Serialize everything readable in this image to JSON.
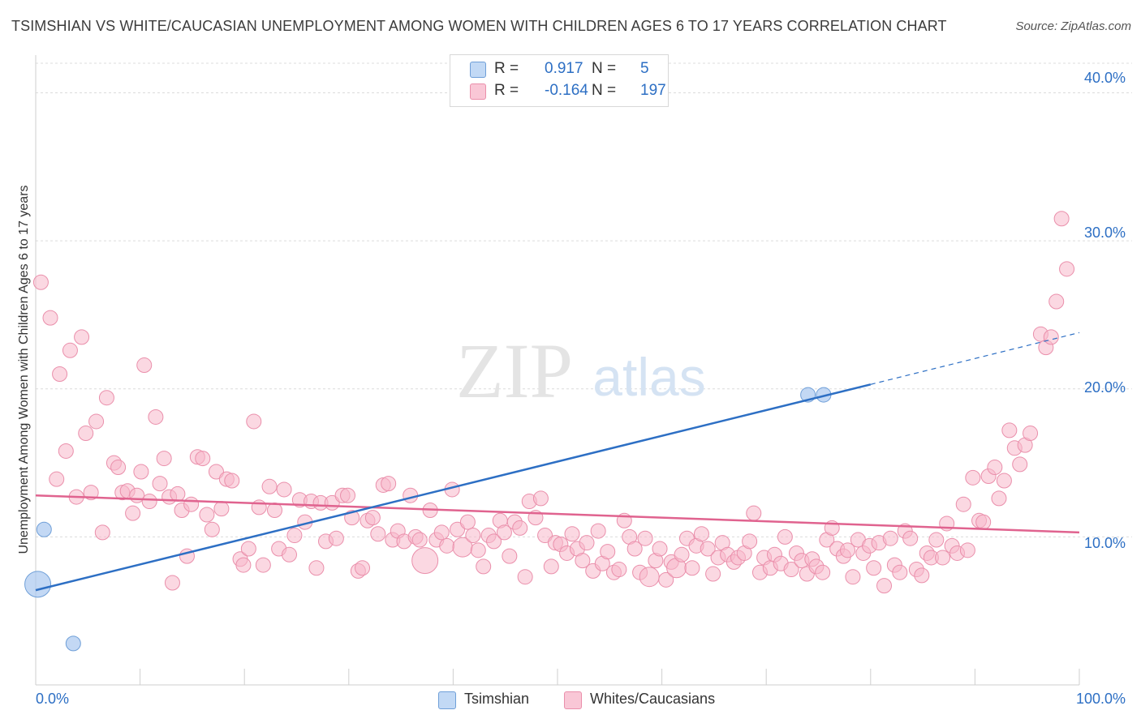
{
  "title": "TSIMSHIAN VS WHITE/CAUCASIAN UNEMPLOYMENT AMONG WOMEN WITH CHILDREN AGES 6 TO 17 YEARS CORRELATION CHART",
  "source": "Source: ZipAtlas.com",
  "watermark": {
    "zip": "ZIP",
    "atlas": "atlas"
  },
  "legend": {
    "rows": [
      {
        "r_label": "R =",
        "r_value": "0.917",
        "n_label": "N =",
        "n_value": "5"
      },
      {
        "r_label": "R =",
        "r_value": "-0.164",
        "n_label": "N =",
        "n_value": "197"
      }
    ]
  },
  "bottom_legend": {
    "series1": "Tsimshian",
    "series2": "Whites/Caucasians"
  },
  "colors": {
    "tsimshian_fill": "#aac8f0",
    "tsimshian_stroke": "#6f9fd8",
    "tsimshian_line": "#2d6fc4",
    "white_fill": "#f7b8cb",
    "white_stroke": "#ea8fab",
    "white_line": "#e0638f",
    "axis_label": "#2d6fc4",
    "grid": "#dcdcdc"
  },
  "chart_data": {
    "type": "scatter",
    "title": "TSIMSHIAN VS WHITE/CAUCASIAN UNEMPLOYMENT AMONG WOMEN WITH CHILDREN AGES 6 TO 17 YEARS CORRELATION CHART",
    "xlabel": "",
    "ylabel": "Unemployment Among Women with Children Ages 6 to 17 years",
    "xlim": [
      0,
      100
    ],
    "ylim": [
      0,
      42
    ],
    "x_tick_labels": [
      "0.0%",
      "100.0%"
    ],
    "x_minor_ticks": [
      0,
      10,
      20,
      30,
      40,
      50,
      60,
      70,
      80,
      90,
      100
    ],
    "y_ticks": [
      10,
      20,
      30,
      40
    ],
    "y_tick_labels": [
      "10.0%",
      "20.0%",
      "30.0%",
      "40.0%"
    ],
    "grid": true,
    "legend_position": "top-center",
    "series": [
      {
        "name": "Tsimshian",
        "points": [
          [
            0.2,
            6.8,
            16
          ],
          [
            0.8,
            10.5,
            9
          ],
          [
            3.6,
            2.8,
            9
          ],
          [
            74.0,
            19.6,
            9
          ],
          [
            75.5,
            19.6,
            9
          ]
        ],
        "trend": {
          "x0": 0,
          "y0": 6.4,
          "x1": 80,
          "y1": 20.3,
          "dashed_to_x": 100,
          "dashed_to_y": 23.8
        }
      },
      {
        "name": "Whites/Caucasians",
        "points": [
          [
            0.5,
            27.2,
            9
          ],
          [
            1.4,
            24.8,
            9
          ],
          [
            2.0,
            13.9,
            9
          ],
          [
            2.3,
            21.0,
            9
          ],
          [
            2.9,
            15.8,
            9
          ],
          [
            3.3,
            22.6,
            9
          ],
          [
            3.9,
            12.7,
            9
          ],
          [
            4.4,
            23.5,
            9
          ],
          [
            4.8,
            17.0,
            9
          ],
          [
            5.3,
            13.0,
            9
          ],
          [
            5.8,
            17.8,
            9
          ],
          [
            6.4,
            10.3,
            9
          ],
          [
            6.8,
            19.4,
            9
          ],
          [
            7.5,
            15.0,
            9
          ],
          [
            7.9,
            14.7,
            9
          ],
          [
            8.3,
            13.0,
            9
          ],
          [
            8.8,
            13.1,
            9
          ],
          [
            9.3,
            11.6,
            9
          ],
          [
            9.7,
            12.8,
            9
          ],
          [
            10.1,
            14.4,
            9
          ],
          [
            10.4,
            21.6,
            9
          ],
          [
            10.9,
            12.4,
            9
          ],
          [
            11.5,
            18.1,
            9
          ],
          [
            11.9,
            13.6,
            9
          ],
          [
            12.3,
            15.3,
            9
          ],
          [
            12.8,
            12.7,
            9
          ],
          [
            13.1,
            6.9,
            9
          ],
          [
            13.6,
            12.9,
            9
          ],
          [
            14.0,
            11.8,
            9
          ],
          [
            14.5,
            8.7,
            9
          ],
          [
            14.9,
            12.2,
            9
          ],
          [
            15.5,
            15.4,
            9
          ],
          [
            16.0,
            15.3,
            9
          ],
          [
            16.4,
            11.5,
            9
          ],
          [
            16.9,
            10.5,
            9
          ],
          [
            17.3,
            14.4,
            9
          ],
          [
            17.8,
            11.9,
            9
          ],
          [
            18.3,
            13.9,
            9
          ],
          [
            18.8,
            13.8,
            9
          ],
          [
            19.6,
            8.5,
            9
          ],
          [
            19.9,
            8.1,
            9
          ],
          [
            20.4,
            9.2,
            9
          ],
          [
            20.9,
            17.8,
            9
          ],
          [
            21.4,
            12.0,
            9
          ],
          [
            21.8,
            8.1,
            9
          ],
          [
            22.4,
            13.4,
            9
          ],
          [
            22.9,
            11.8,
            9
          ],
          [
            23.3,
            9.2,
            9
          ],
          [
            23.8,
            13.2,
            9
          ],
          [
            24.3,
            8.8,
            9
          ],
          [
            24.8,
            10.1,
            9
          ],
          [
            25.3,
            12.5,
            9
          ],
          [
            25.8,
            11.0,
            9
          ],
          [
            26.4,
            12.4,
            9
          ],
          [
            26.9,
            7.9,
            9
          ],
          [
            27.3,
            12.3,
            9
          ],
          [
            27.8,
            9.7,
            9
          ],
          [
            28.4,
            12.3,
            9
          ],
          [
            28.8,
            9.9,
            9
          ],
          [
            29.4,
            12.8,
            9
          ],
          [
            29.9,
            12.8,
            9
          ],
          [
            30.3,
            11.3,
            9
          ],
          [
            30.9,
            7.7,
            9
          ],
          [
            31.3,
            7.9,
            9
          ],
          [
            31.8,
            11.1,
            9
          ],
          [
            32.3,
            11.3,
            9
          ],
          [
            32.8,
            10.2,
            9
          ],
          [
            33.3,
            13.5,
            9
          ],
          [
            33.8,
            13.6,
            9
          ],
          [
            34.2,
            9.8,
            9
          ],
          [
            34.7,
            10.4,
            9
          ],
          [
            35.3,
            9.7,
            9
          ],
          [
            35.9,
            12.8,
            9
          ],
          [
            36.4,
            10.0,
            9
          ],
          [
            36.8,
            9.8,
            9
          ],
          [
            37.3,
            8.4,
            16
          ],
          [
            37.8,
            11.8,
            9
          ],
          [
            38.4,
            9.8,
            9
          ],
          [
            38.9,
            10.3,
            9
          ],
          [
            39.4,
            9.4,
            9
          ],
          [
            39.9,
            13.2,
            9
          ],
          [
            40.4,
            10.5,
            9
          ],
          [
            40.9,
            9.3,
            12
          ],
          [
            41.4,
            11.0,
            9
          ],
          [
            41.9,
            10.1,
            9
          ],
          [
            42.4,
            9.1,
            9
          ],
          [
            42.9,
            8.0,
            9
          ],
          [
            43.4,
            10.1,
            9
          ],
          [
            43.9,
            9.7,
            9
          ],
          [
            44.5,
            11.1,
            9
          ],
          [
            44.9,
            10.3,
            9
          ],
          [
            45.4,
            8.7,
            9
          ],
          [
            45.9,
            11.0,
            9
          ],
          [
            46.4,
            10.6,
            9
          ],
          [
            46.9,
            7.3,
            9
          ],
          [
            47.3,
            12.4,
            9
          ],
          [
            47.9,
            11.3,
            9
          ],
          [
            48.4,
            12.6,
            9
          ],
          [
            48.8,
            10.1,
            9
          ],
          [
            49.4,
            8.0,
            9
          ],
          [
            49.8,
            9.6,
            9
          ],
          [
            50.3,
            9.5,
            9
          ],
          [
            50.9,
            8.9,
            9
          ],
          [
            51.4,
            10.2,
            9
          ],
          [
            51.9,
            9.2,
            9
          ],
          [
            52.4,
            8.4,
            9
          ],
          [
            52.8,
            9.6,
            9
          ],
          [
            53.4,
            7.7,
            9
          ],
          [
            53.9,
            10.4,
            9
          ],
          [
            54.3,
            8.2,
            9
          ],
          [
            54.8,
            9.0,
            9
          ],
          [
            55.4,
            7.6,
            9
          ],
          [
            55.9,
            7.8,
            9
          ],
          [
            56.4,
            11.1,
            9
          ],
          [
            56.9,
            10.0,
            9
          ],
          [
            57.4,
            9.2,
            9
          ],
          [
            57.9,
            7.6,
            9
          ],
          [
            58.4,
            9.9,
            9
          ],
          [
            58.8,
            7.3,
            12
          ],
          [
            59.4,
            8.4,
            9
          ],
          [
            59.8,
            9.2,
            9
          ],
          [
            60.4,
            7.1,
            9
          ],
          [
            60.9,
            8.3,
            9
          ],
          [
            61.4,
            7.9,
            12
          ],
          [
            61.9,
            8.8,
            9
          ],
          [
            62.4,
            9.9,
            9
          ],
          [
            62.9,
            7.9,
            9
          ],
          [
            63.3,
            9.4,
            9
          ],
          [
            63.8,
            10.2,
            9
          ],
          [
            64.4,
            9.2,
            9
          ],
          [
            64.9,
            7.5,
            9
          ],
          [
            65.4,
            8.6,
            9
          ],
          [
            65.8,
            9.6,
            9
          ],
          [
            66.3,
            8.8,
            9
          ],
          [
            66.9,
            8.3,
            9
          ],
          [
            67.3,
            8.6,
            9
          ],
          [
            67.9,
            8.9,
            9
          ],
          [
            68.4,
            9.7,
            9
          ],
          [
            68.8,
            11.6,
            9
          ],
          [
            69.4,
            7.6,
            9
          ],
          [
            69.8,
            8.6,
            9
          ],
          [
            70.4,
            7.9,
            9
          ],
          [
            70.8,
            8.8,
            9
          ],
          [
            71.4,
            8.2,
            9
          ],
          [
            71.8,
            10.0,
            9
          ],
          [
            72.4,
            7.8,
            9
          ],
          [
            72.9,
            8.9,
            9
          ],
          [
            73.4,
            8.4,
            9
          ],
          [
            73.9,
            7.5,
            9
          ],
          [
            74.4,
            8.5,
            9
          ],
          [
            74.8,
            8.0,
            9
          ],
          [
            75.4,
            7.6,
            9
          ],
          [
            75.8,
            9.8,
            9
          ],
          [
            76.3,
            10.6,
            9
          ],
          [
            76.8,
            9.2,
            9
          ],
          [
            77.4,
            8.7,
            9
          ],
          [
            77.8,
            9.1,
            9
          ],
          [
            78.3,
            7.3,
            9
          ],
          [
            78.8,
            9.8,
            9
          ],
          [
            79.3,
            8.9,
            9
          ],
          [
            79.9,
            9.4,
            9
          ],
          [
            80.3,
            7.9,
            9
          ],
          [
            80.8,
            9.6,
            9
          ],
          [
            81.3,
            6.7,
            9
          ],
          [
            81.9,
            9.9,
            9
          ],
          [
            82.3,
            8.1,
            9
          ],
          [
            82.8,
            7.6,
            9
          ],
          [
            83.3,
            10.4,
            9
          ],
          [
            83.8,
            9.9,
            9
          ],
          [
            84.4,
            7.8,
            9
          ],
          [
            84.9,
            7.4,
            9
          ],
          [
            85.4,
            8.9,
            9
          ],
          [
            85.8,
            8.6,
            9
          ],
          [
            86.3,
            9.8,
            9
          ],
          [
            86.9,
            8.6,
            9
          ],
          [
            87.3,
            10.9,
            9
          ],
          [
            87.8,
            9.4,
            9
          ],
          [
            88.3,
            8.9,
            9
          ],
          [
            88.9,
            12.2,
            9
          ],
          [
            89.3,
            9.1,
            9
          ],
          [
            89.8,
            14.0,
            9
          ],
          [
            90.4,
            11.1,
            9
          ],
          [
            90.8,
            11.0,
            9
          ],
          [
            91.3,
            14.1,
            9
          ],
          [
            91.9,
            14.7,
            9
          ],
          [
            92.3,
            12.6,
            9
          ],
          [
            92.8,
            13.8,
            9
          ],
          [
            93.3,
            17.2,
            9
          ],
          [
            93.8,
            16.0,
            9
          ],
          [
            94.3,
            14.9,
            9
          ],
          [
            94.8,
            16.2,
            9
          ],
          [
            95.3,
            17.0,
            9
          ],
          [
            96.3,
            23.7,
            9
          ],
          [
            96.8,
            22.8,
            9
          ],
          [
            97.3,
            23.5,
            9
          ],
          [
            97.8,
            25.9,
            9
          ],
          [
            98.3,
            31.5,
            9
          ],
          [
            98.8,
            28.1,
            9
          ]
        ],
        "trend": {
          "x0": 0,
          "y0": 12.8,
          "x1": 100,
          "y1": 10.3
        }
      }
    ]
  }
}
